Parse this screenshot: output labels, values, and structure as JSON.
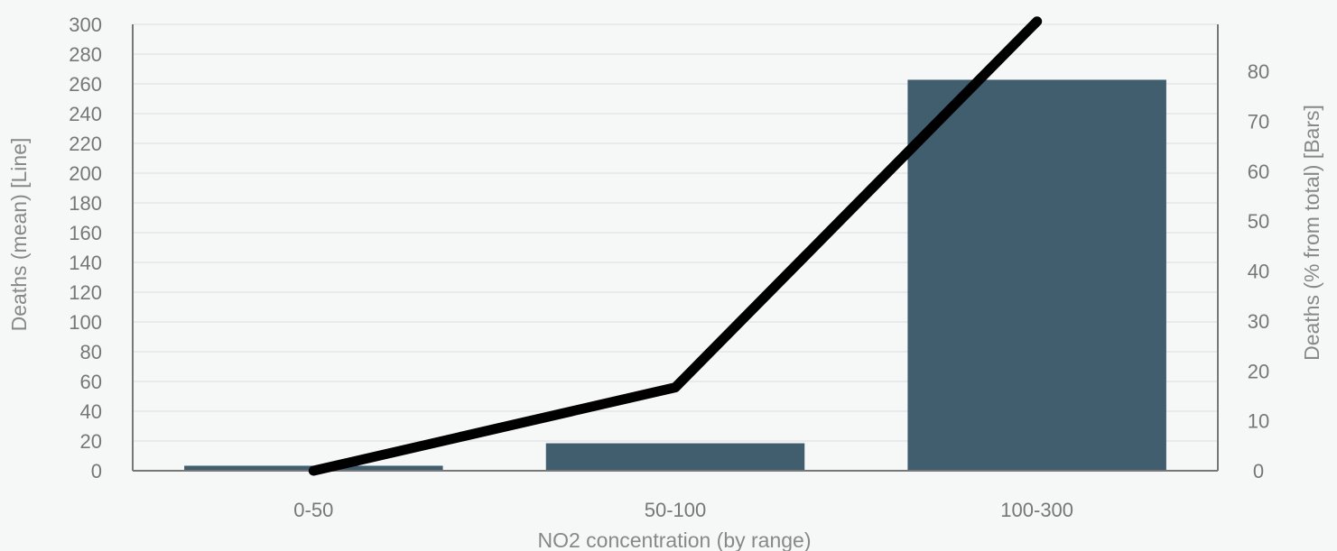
{
  "chart_data": {
    "type": "bar+line",
    "categories": [
      "0-50",
      "50-100",
      "100-300"
    ],
    "bars": {
      "name": "Deaths (% from total)",
      "axis": "right",
      "values": [
        1.0,
        5.5,
        78.3
      ],
      "color": "#415e6f"
    },
    "line": {
      "name": "Deaths (mean)",
      "axis": "left",
      "values": [
        0,
        56,
        302
      ],
      "color": "#000000"
    },
    "xlabel": "NO2  concentration (by range)",
    "ylabel_left": "Deaths (mean) [Line]",
    "ylabel_right": "Deaths (% from total) [Bars]",
    "ylim_left": [
      0,
      300
    ],
    "yticks_left": [
      0,
      20,
      40,
      60,
      80,
      100,
      120,
      140,
      160,
      180,
      200,
      220,
      240,
      260,
      280,
      300
    ],
    "ylim_right": [
      0,
      89.4
    ],
    "yticks_right": [
      0,
      10,
      20,
      30,
      40,
      50,
      60,
      70,
      80
    ],
    "grid": true,
    "legend": "none"
  }
}
